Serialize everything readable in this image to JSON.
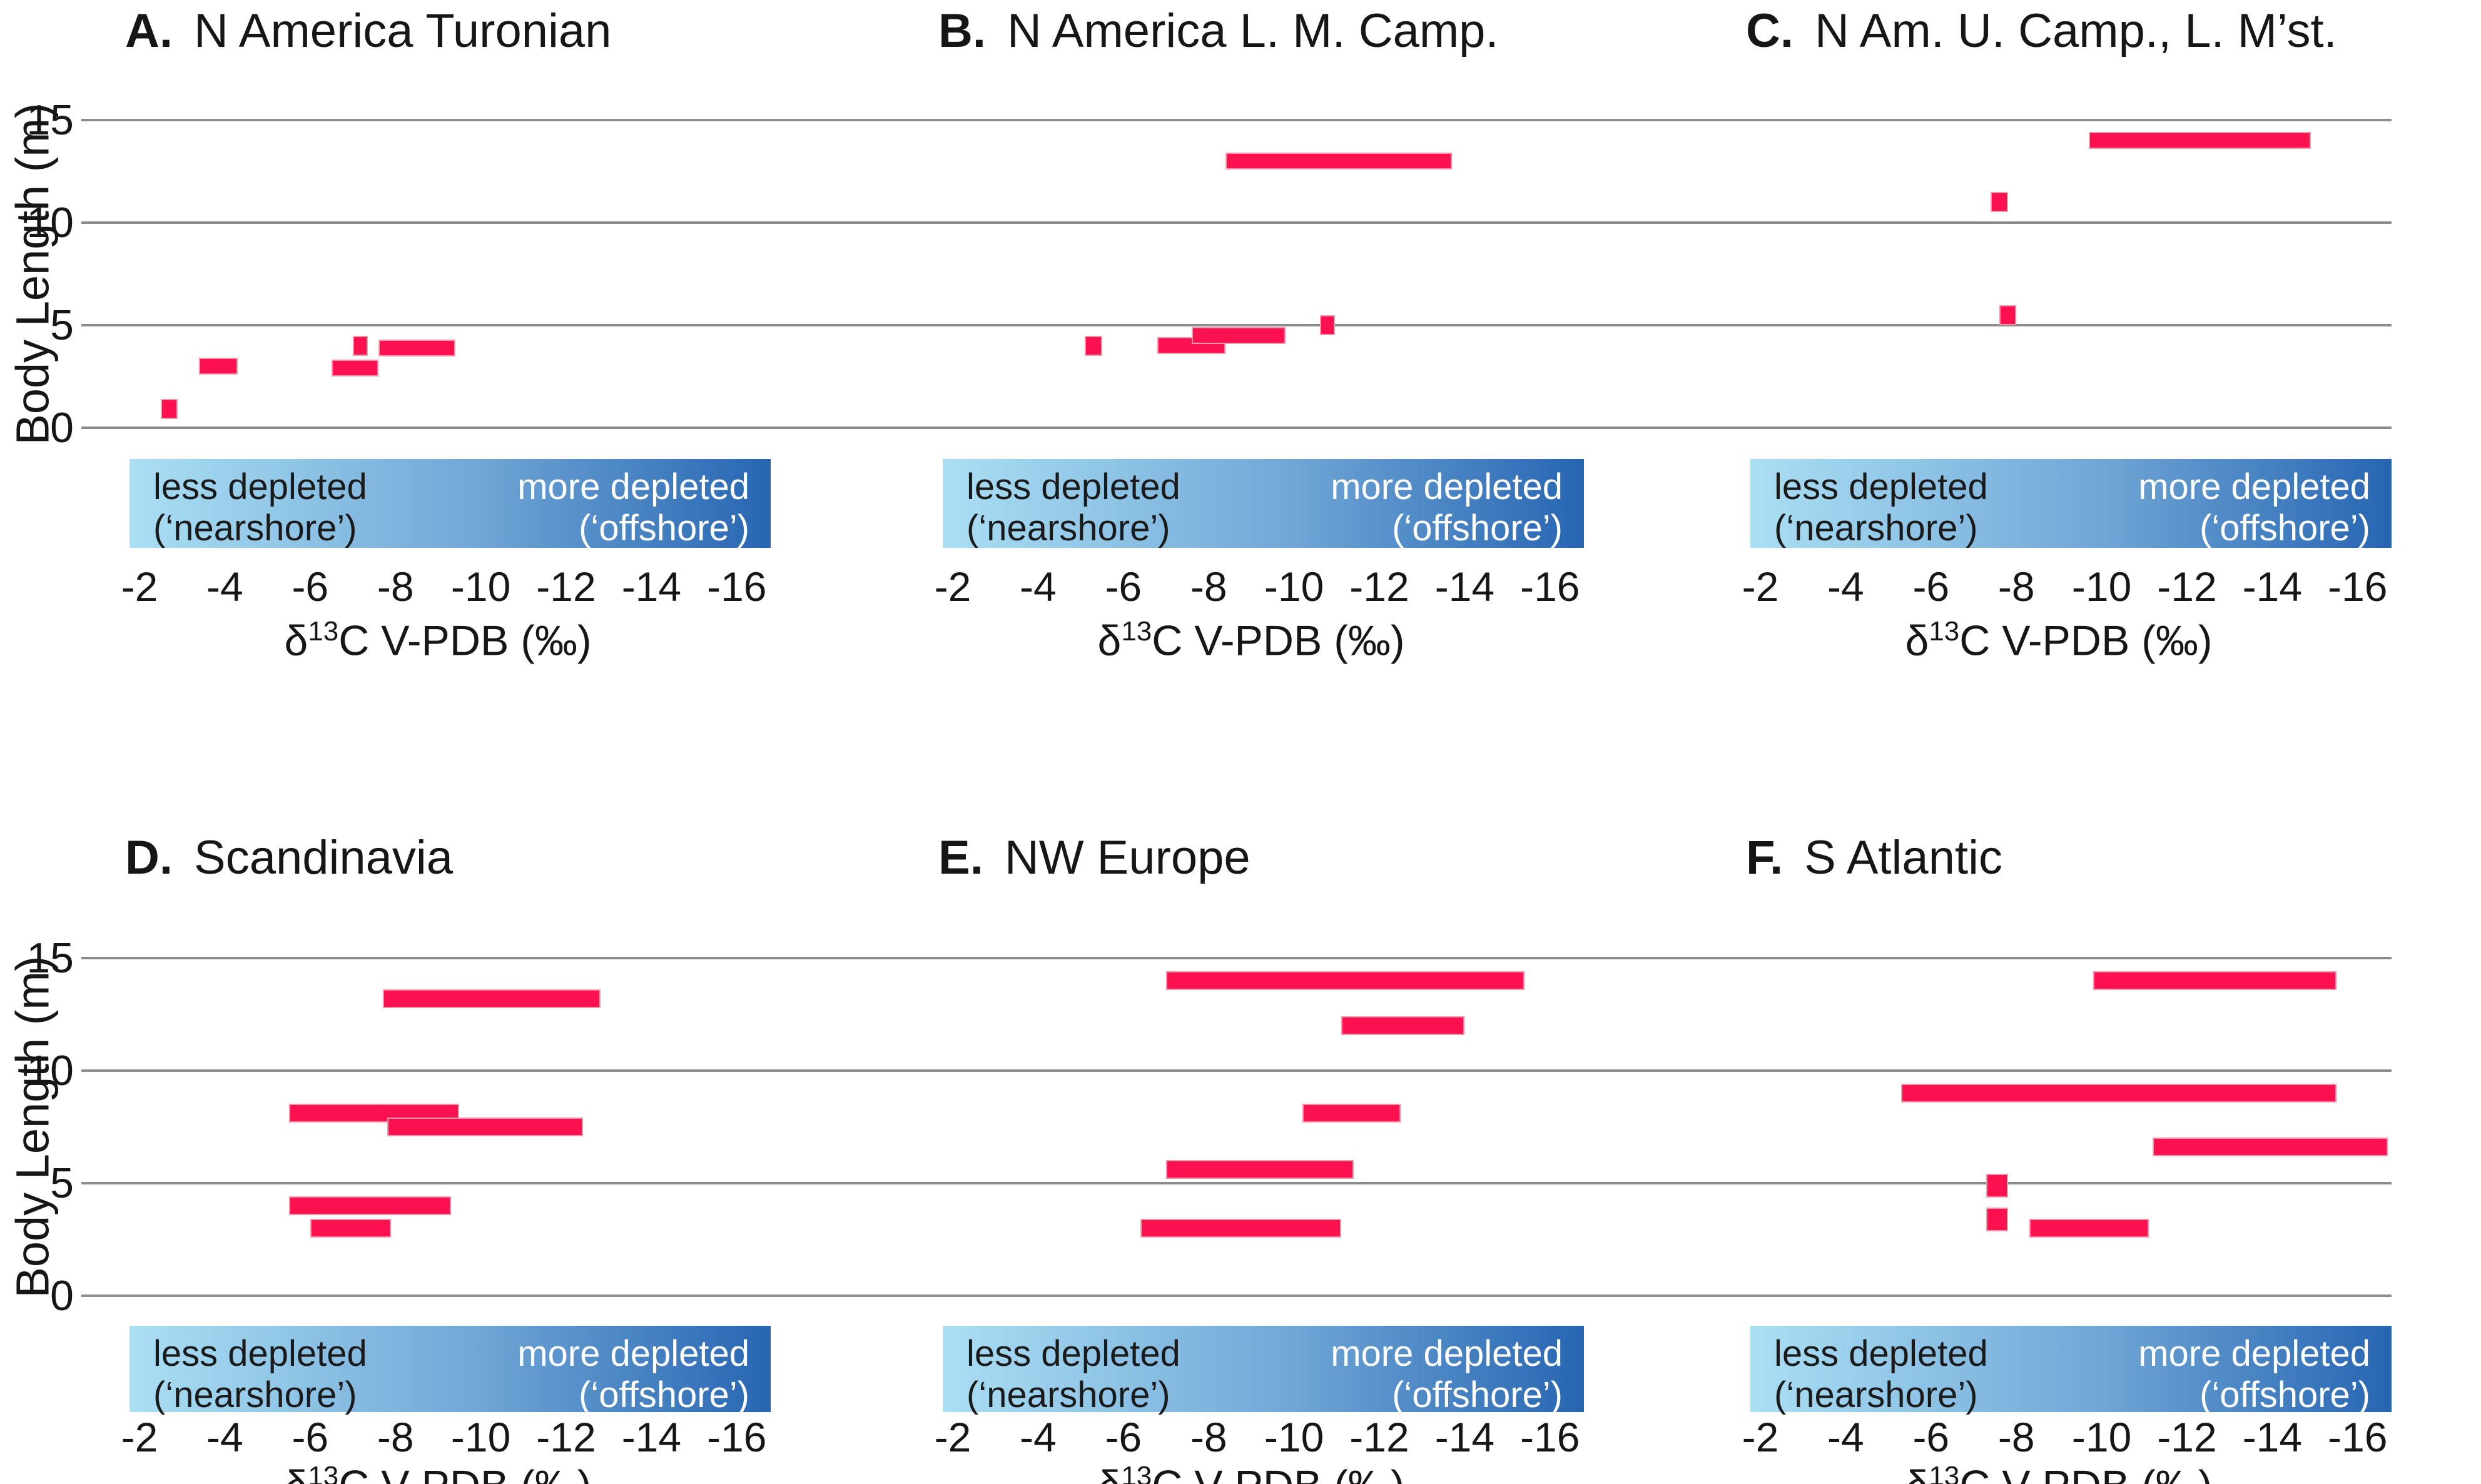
{
  "figure": {
    "ylabel": "Body Length (m)",
    "xlabel_prefix": "δ",
    "xlabel_sup": "13",
    "xlabel_suffix": "C V-PDB (‰)",
    "y_ticks": [
      "15",
      "10",
      "5",
      "0"
    ],
    "x_ticks": [
      "-2",
      "-4",
      "-6",
      "-8",
      "-10",
      "-12",
      "-14",
      "-16"
    ],
    "gradient": {
      "left_line1": "less depleted",
      "left_line2": "(‘nearshore’)",
      "right_line1": "more depleted",
      "right_line2": "(‘offshore’)",
      "color_left": "#ABDFF4",
      "color_mid": "#6FA6D6",
      "color_right": "#2765B2"
    },
    "bar_color": "#FC1150",
    "bar_edge_color": "#FF96AA",
    "gridline_color": "#8C8C8C"
  },
  "chart_data": [
    {
      "type": "bar",
      "letter": "A",
      "title": "N America Turonian",
      "xlabel": "δ13C V-PDB (‰)",
      "ylabel": "Body Length (m)",
      "ylim": [
        0,
        15
      ],
      "xlim": [
        -2,
        -16
      ],
      "bars": [
        {
          "length_m": 0.9,
          "d13c_from": -2.5,
          "d13c_to": -2.9,
          "point": true
        },
        {
          "length_m": 3.0,
          "d13c_from": -3.4,
          "d13c_to": -4.3,
          "point": false
        },
        {
          "length_m": 2.9,
          "d13c_from": -6.5,
          "d13c_to": -7.6,
          "point": false
        },
        {
          "length_m": 4.0,
          "d13c_from": -7.0,
          "d13c_to": -7.3,
          "point": true
        },
        {
          "length_m": 3.9,
          "d13c_from": -7.6,
          "d13c_to": -9.4,
          "point": false
        }
      ]
    },
    {
      "type": "bar",
      "letter": "B",
      "title": "N America L. M. Camp.",
      "xlabel": "δ13C V-PDB (‰)",
      "ylabel": "Body Length (m)",
      "ylim": [
        0,
        15
      ],
      "xlim": [
        -2,
        -16
      ],
      "bars": [
        {
          "length_m": 4.0,
          "d13c_from": -5.1,
          "d13c_to": -5.5,
          "point": true
        },
        {
          "length_m": 4.0,
          "d13c_from": -6.8,
          "d13c_to": -8.4,
          "point": false
        },
        {
          "length_m": 4.5,
          "d13c_from": -7.6,
          "d13c_to": -9.8,
          "point": false
        },
        {
          "length_m": 5.0,
          "d13c_from": -10.6,
          "d13c_to": -10.9,
          "point": true
        },
        {
          "length_m": 13.0,
          "d13c_from": -8.4,
          "d13c_to": -13.7,
          "point": false
        }
      ]
    },
    {
      "type": "bar",
      "letter": "C",
      "title": "N Am. U. Camp., L. M’st.",
      "xlabel": "δ13C V-PDB (‰)",
      "ylabel": "Body Length (m)",
      "ylim": [
        0,
        15
      ],
      "xlim": [
        -2,
        -16
      ],
      "bars": [
        {
          "length_m": 14.0,
          "d13c_from": -9.7,
          "d13c_to": -14.9,
          "point": false
        },
        {
          "length_m": 11.0,
          "d13c_from": -7.4,
          "d13c_to": -7.8,
          "point": true
        },
        {
          "length_m": 5.5,
          "d13c_from": -7.6,
          "d13c_to": -8.0,
          "point": true
        }
      ]
    },
    {
      "type": "bar",
      "letter": "D",
      "title": "Scandinavia",
      "xlabel": "δ13C V-PDB (‰)",
      "ylabel": "Body Length (m)",
      "ylim": [
        0,
        15
      ],
      "xlim": [
        -2,
        -16
      ],
      "bars": [
        {
          "length_m": 13.2,
          "d13c_from": -7.7,
          "d13c_to": -12.8,
          "point": false
        },
        {
          "length_m": 8.1,
          "d13c_from": -5.5,
          "d13c_to": -9.5,
          "point": false
        },
        {
          "length_m": 7.5,
          "d13c_from": -7.8,
          "d13c_to": -12.4,
          "point": false
        },
        {
          "length_m": 4.0,
          "d13c_from": -5.5,
          "d13c_to": -9.3,
          "point": false
        },
        {
          "length_m": 3.0,
          "d13c_from": -6.0,
          "d13c_to": -7.9,
          "point": false
        }
      ]
    },
    {
      "type": "bar",
      "letter": "E",
      "title": "NW Europe",
      "xlabel": "δ13C V-PDB (‰)",
      "ylabel": "Body Length (m)",
      "ylim": [
        0,
        15
      ],
      "xlim": [
        -2,
        -16
      ],
      "bars": [
        {
          "length_m": 14.0,
          "d13c_from": -7.0,
          "d13c_to": -15.4,
          "point": false
        },
        {
          "length_m": 12.0,
          "d13c_from": -11.1,
          "d13c_to": -14.0,
          "point": false
        },
        {
          "length_m": 8.1,
          "d13c_from": -10.2,
          "d13c_to": -12.5,
          "point": false
        },
        {
          "length_m": 5.6,
          "d13c_from": -7.0,
          "d13c_to": -11.4,
          "point": false
        },
        {
          "length_m": 3.0,
          "d13c_from": -6.4,
          "d13c_to": -11.1,
          "point": false
        }
      ]
    },
    {
      "type": "bar",
      "letter": "F",
      "title": "S Atlantic",
      "xlabel": "δ13C V-PDB (‰)",
      "ylabel": "Body Length (m)",
      "ylim": [
        0,
        15
      ],
      "xlim": [
        -2,
        -16
      ],
      "bars": [
        {
          "length_m": 14.0,
          "d13c_from": -9.8,
          "d13c_to": -15.5,
          "point": false
        },
        {
          "length_m": 9.0,
          "d13c_from": -5.3,
          "d13c_to": -15.5,
          "point": false
        },
        {
          "length_m": 6.6,
          "d13c_from": -11.2,
          "d13c_to": -16.7,
          "point": false
        },
        {
          "length_m": 4.9,
          "d13c_from": -7.3,
          "d13c_to": -7.8,
          "point": true
        },
        {
          "length_m": 3.4,
          "d13c_from": -7.3,
          "d13c_to": -7.8,
          "point": true
        },
        {
          "length_m": 3.0,
          "d13c_from": -8.3,
          "d13c_to": -11.1,
          "point": false
        }
      ]
    }
  ]
}
